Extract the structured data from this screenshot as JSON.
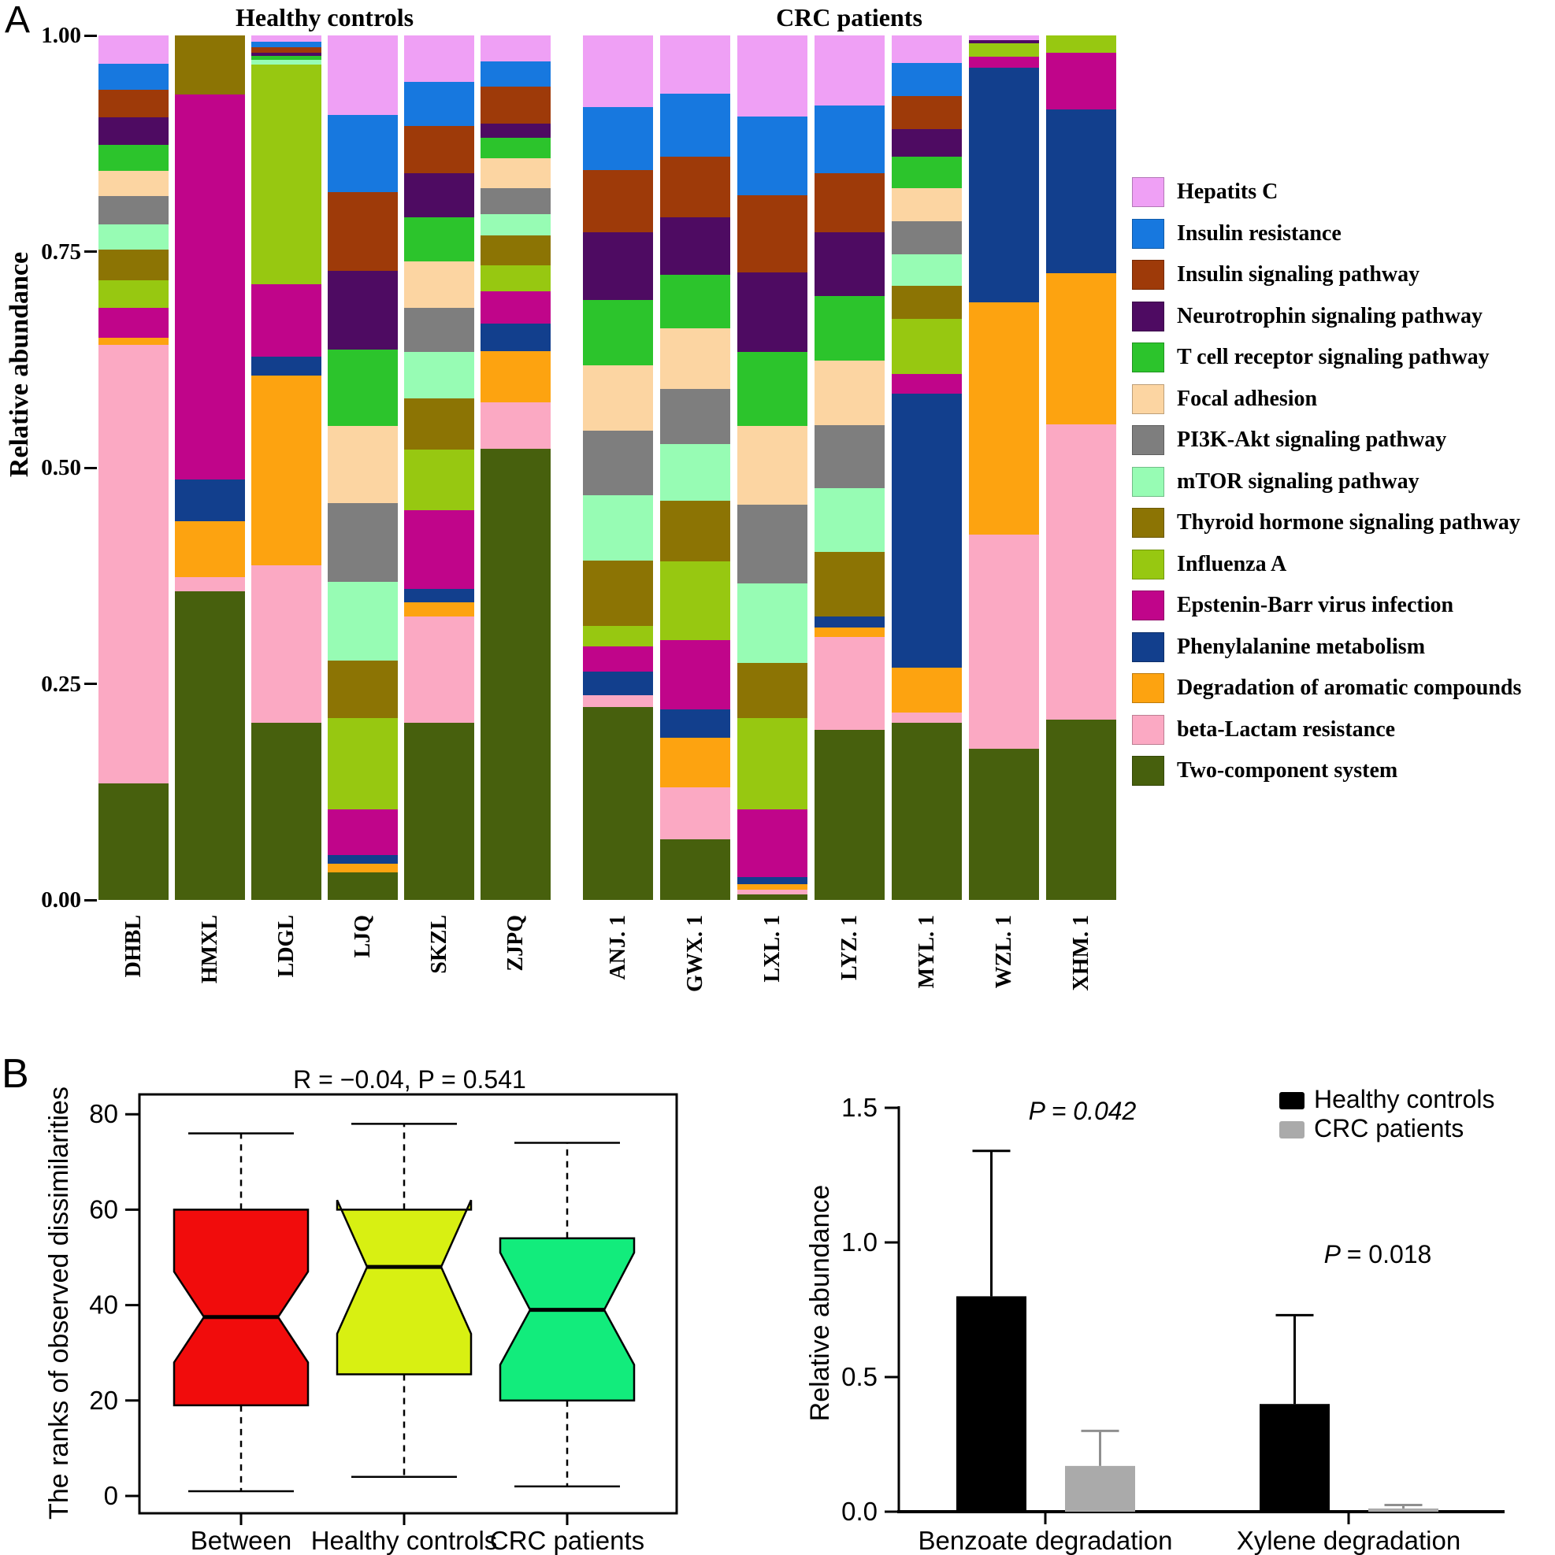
{
  "panels": {
    "a": {
      "label": "A"
    },
    "b": {
      "label": "B"
    }
  },
  "chart_data": [
    {
      "id": "ko-pathway-relative-abundance",
      "type": "bar",
      "stacked": true,
      "ylabel": "Relative abundance",
      "yticks": [
        "1.00",
        "0.75",
        "0.50",
        "0.25",
        "0.00"
      ],
      "ylim": [
        0,
        1
      ],
      "grid": false,
      "legend_position": "right",
      "group_titles": [
        "Healthy controls",
        "CRC patients"
      ],
      "group_ranges": [
        [
          0,
          5
        ],
        [
          6,
          12
        ]
      ],
      "categories": [
        "DHBL",
        "HMXL",
        "LDGL",
        "LJQ",
        "SKZL",
        "ZJPQ",
        "ANJ. 1",
        "GWX. 1",
        "LXL. 1",
        "LYZ. 1",
        "MYL. 1",
        "WZL. 1",
        "XHM. 1"
      ],
      "series": [
        {
          "name": "Hepatits C",
          "color": "#EFA0F5",
          "values": [
            0.033,
            0,
            0.007,
            0.092,
            0.054,
            0.03,
            0.083,
            0.067,
            0.094,
            0.081,
            0.032,
            0.005,
            0
          ]
        },
        {
          "name": "Insulin resistance",
          "color": "#1778DF",
          "values": [
            0.03,
            0,
            0.007,
            0.089,
            0.051,
            0.029,
            0.073,
            0.073,
            0.091,
            0.078,
            0.038,
            0,
            0
          ]
        },
        {
          "name": "Insulin signaling pathway",
          "color": "#9E3A09",
          "values": [
            0.032,
            0,
            0.006,
            0.091,
            0.054,
            0.043,
            0.072,
            0.07,
            0.089,
            0.069,
            0.038,
            0,
            0
          ]
        },
        {
          "name": "Neurotrophin signaling pathway",
          "color": "#4E0B62",
          "values": [
            0.032,
            0,
            0.004,
            0.091,
            0.051,
            0.016,
            0.078,
            0.067,
            0.092,
            0.073,
            0.032,
            0.004,
            0
          ]
        },
        {
          "name": "T cell receptor signaling pathway",
          "color": "#2CC42C",
          "values": [
            0.03,
            0,
            0.004,
            0.089,
            0.051,
            0.024,
            0.076,
            0.062,
            0.086,
            0.075,
            0.037,
            0,
            0
          ]
        },
        {
          "name": "Focal adhesion",
          "color": "#FCD5A2",
          "values": [
            0.029,
            0,
            0,
            0.089,
            0.054,
            0.035,
            0.075,
            0.07,
            0.091,
            0.075,
            0.038,
            0,
            0
          ]
        },
        {
          "name": "PI3K-Akt signaling pathway",
          "color": "#7E7E7E",
          "values": [
            0.033,
            0,
            0,
            0.091,
            0.051,
            0.03,
            0.075,
            0.064,
            0.091,
            0.073,
            0.038,
            0,
            0
          ]
        },
        {
          "name": "mTOR signaling pathway",
          "color": "#97FCB4",
          "values": [
            0.029,
            0,
            0.006,
            0.091,
            0.054,
            0.024,
            0.075,
            0.065,
            0.092,
            0.073,
            0.037,
            0,
            0
          ]
        },
        {
          "name": "Thyroid hormone signaling pathway",
          "color": "#8C7404",
          "values": [
            0.035,
            0.068,
            0,
            0.067,
            0.059,
            0.035,
            0.076,
            0.07,
            0.064,
            0.075,
            0.038,
            0,
            0
          ]
        },
        {
          "name": "Influenza A",
          "color": "#97C811",
          "values": [
            0.032,
            0,
            0.254,
            0.105,
            0.07,
            0.03,
            0.024,
            0.091,
            0.105,
            0,
            0.064,
            0.016,
            0.02
          ]
        },
        {
          "name": "Epstenin-Barr virus infection",
          "color": "#C0058A",
          "values": [
            0.035,
            0.446,
            0.084,
            0.053,
            0.091,
            0.037,
            0.029,
            0.081,
            0.079,
            0,
            0.022,
            0.012,
            0.066
          ]
        },
        {
          "name": "Phenylalanine metabolism",
          "color": "#123F8D",
          "values": [
            0,
            0.048,
            0.021,
            0.01,
            0.016,
            0.032,
            0.027,
            0.032,
            0.008,
            0.013,
            0.317,
            0.272,
            0.189
          ]
        },
        {
          "name": "Degradation of aromatic compounds",
          "color": "#FDA310",
          "values": [
            0.008,
            0.065,
            0.22,
            0.01,
            0.016,
            0.059,
            0,
            0.058,
            0.006,
            0.011,
            0.052,
            0.268,
            0.175
          ]
        },
        {
          "name": "beta-Lactam resistance",
          "color": "#FBA9C3",
          "values": [
            0.507,
            0.016,
            0.182,
            0,
            0.123,
            0.054,
            0.014,
            0.06,
            0.006,
            0.107,
            0.012,
            0.248,
            0.341
          ]
        },
        {
          "name": "Two-component system",
          "color": "#47600D",
          "values": [
            0.135,
            0.357,
            0.205,
            0.032,
            0.205,
            0.522,
            0.223,
            0.07,
            0.006,
            0.197,
            0.205,
            0.175,
            0.209
          ]
        }
      ]
    },
    {
      "id": "anosim-dissimilarity-boxplot",
      "type": "boxplot",
      "title": "R = −0.04,   P = 0.541",
      "ylabel": "The ranks of observed dissimilarities",
      "ylim": [
        0,
        80
      ],
      "yticks": [
        "0",
        "20",
        "40",
        "60",
        "80"
      ],
      "boxes": [
        {
          "label": "Between",
          "color": "#F10C0C",
          "whislo": 1,
          "q1": 19,
          "notchlo": 28,
          "med": 37.5,
          "notchhi": 47,
          "q3": 60,
          "whishi": 76
        },
        {
          "label": "Healthy controls",
          "color": "#D8F012",
          "whislo": 4,
          "q1": 25.5,
          "notchlo": 34,
          "med": 48,
          "notchhi": 62,
          "q3": 60,
          "whishi": 78
        },
        {
          "label": "CRC patients",
          "color": "#12EC7C",
          "whislo": 2,
          "q1": 20,
          "notchlo": 27.5,
          "med": 39,
          "notchhi": 51,
          "q3": 54,
          "whishi": 74
        }
      ]
    },
    {
      "id": "degradation-pathway-abundance",
      "type": "bar",
      "ylabel": "Relative abundance",
      "ylim": [
        0,
        1.5
      ],
      "yticks": [
        "0.0",
        "0.5",
        "1.0",
        "1.5"
      ],
      "legend": [
        {
          "label": "Healthy controls",
          "color": "#000000"
        },
        {
          "label": "CRC patients",
          "color": "#AAAAAA"
        }
      ],
      "groups": [
        {
          "label": "Benzoate degradation",
          "p_label": "P = 0.042",
          "p_style": "italic",
          "bars": [
            {
              "series": "Healthy controls",
              "value": 0.8,
              "err_hi": 1.34
            },
            {
              "series": "CRC patients",
              "value": 0.17,
              "err_hi": 0.3
            }
          ]
        },
        {
          "label": "Xylene degradation",
          "p_label": "P = 0.018",
          "p_style": "italic-p",
          "bars": [
            {
              "series": "Healthy controls",
              "value": 0.4,
              "err_hi": 0.73
            },
            {
              "series": "CRC patients",
              "value": 0.012,
              "err_hi": 0.025
            }
          ]
        }
      ]
    }
  ]
}
